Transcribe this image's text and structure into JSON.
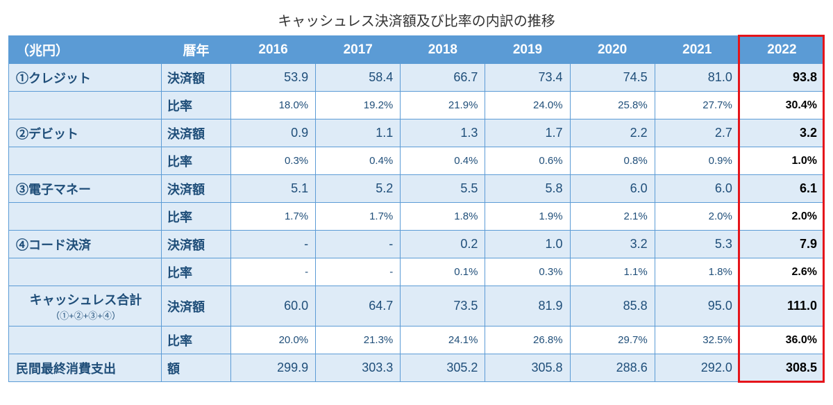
{
  "title": "キャッシュレス決済額及び比率の内訳の推移",
  "header": {
    "unit": "（兆円）",
    "year_label": "暦年",
    "years": [
      "2016",
      "2017",
      "2018",
      "2019",
      "2020",
      "2021",
      "2022"
    ]
  },
  "labels": {
    "amount": "決済額",
    "ratio": "比率",
    "amount_short": "額"
  },
  "rows": {
    "credit": {
      "name": "①クレジット",
      "amount": [
        "53.9",
        "58.4",
        "66.7",
        "73.4",
        "74.5",
        "81.0",
        "93.8"
      ],
      "ratio": [
        "18.0%",
        "19.2%",
        "21.9%",
        "24.0%",
        "25.8%",
        "27.7%",
        "30.4%"
      ]
    },
    "debit": {
      "name": "②デビット",
      "amount": [
        "0.9",
        "1.1",
        "1.3",
        "1.7",
        "2.2",
        "2.7",
        "3.2"
      ],
      "ratio": [
        "0.3%",
        "0.4%",
        "0.4%",
        "0.6%",
        "0.8%",
        "0.9%",
        "1.0%"
      ]
    },
    "emoney": {
      "name": "③電子マネー",
      "amount": [
        "5.1",
        "5.2",
        "5.5",
        "5.8",
        "6.0",
        "6.0",
        "6.1"
      ],
      "ratio": [
        "1.7%",
        "1.7%",
        "1.8%",
        "1.9%",
        "2.1%",
        "2.0%",
        "2.0%"
      ]
    },
    "code": {
      "name": "④コード決済",
      "amount": [
        "-",
        "-",
        "0.2",
        "1.0",
        "3.2",
        "5.3",
        "7.9"
      ],
      "ratio": [
        "-",
        "-",
        "0.1%",
        "0.3%",
        "1.1%",
        "1.8%",
        "2.6%"
      ]
    },
    "total": {
      "name": "キャッシュレス合計",
      "sub": "（①+②+③+④）",
      "amount": [
        "60.0",
        "64.7",
        "73.5",
        "81.9",
        "85.8",
        "95.0",
        "111.0"
      ],
      "ratio": [
        "20.0%",
        "21.3%",
        "24.1%",
        "26.8%",
        "29.7%",
        "32.5%",
        "36.0%"
      ]
    },
    "consume": {
      "name": "民間最終消費支出",
      "amount": [
        "299.9",
        "303.3",
        "305.2",
        "305.8",
        "288.6",
        "292.0",
        "308.5"
      ]
    }
  },
  "colors": {
    "header_bg": "#5b9bd5",
    "header_fg": "#ffffff",
    "band_bg": "#deebf7",
    "text_blue": "#1f4e79",
    "border": "#5b9bd5",
    "highlight": "#e5141a",
    "last_col_text": "#000000"
  }
}
